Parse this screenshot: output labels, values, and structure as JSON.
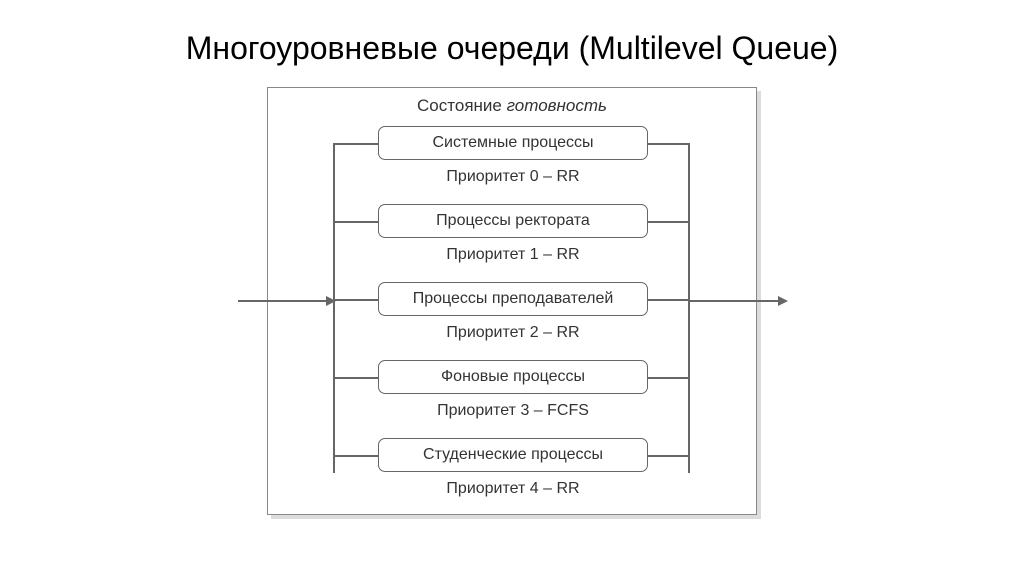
{
  "title": "Многоуровневые очереди (Multilevel Queue)",
  "diagram": {
    "state_label_prefix": "Состояние ",
    "state_label_italic": "готовность",
    "queues": [
      {
        "name": "Системные процессы",
        "priority": "Приоритет 0 – RR"
      },
      {
        "name": "Процессы ректората",
        "priority": "Приоритет 1 – RR"
      },
      {
        "name": "Процессы преподавателей",
        "priority": "Приоритет 2 – RR"
      },
      {
        "name": "Фоновые процессы",
        "priority": "Приоритет 3 – FCFS"
      },
      {
        "name": "Студенческие процессы",
        "priority": "Приоритет 4 – RR"
      }
    ],
    "colors": {
      "border": "#666666",
      "shadow": "#dcdcdc",
      "text": "#333333",
      "background": "#ffffff"
    },
    "box_border_radius": 7,
    "title_fontsize": 32,
    "label_fontsize": 16,
    "state_fontsize": 17
  }
}
